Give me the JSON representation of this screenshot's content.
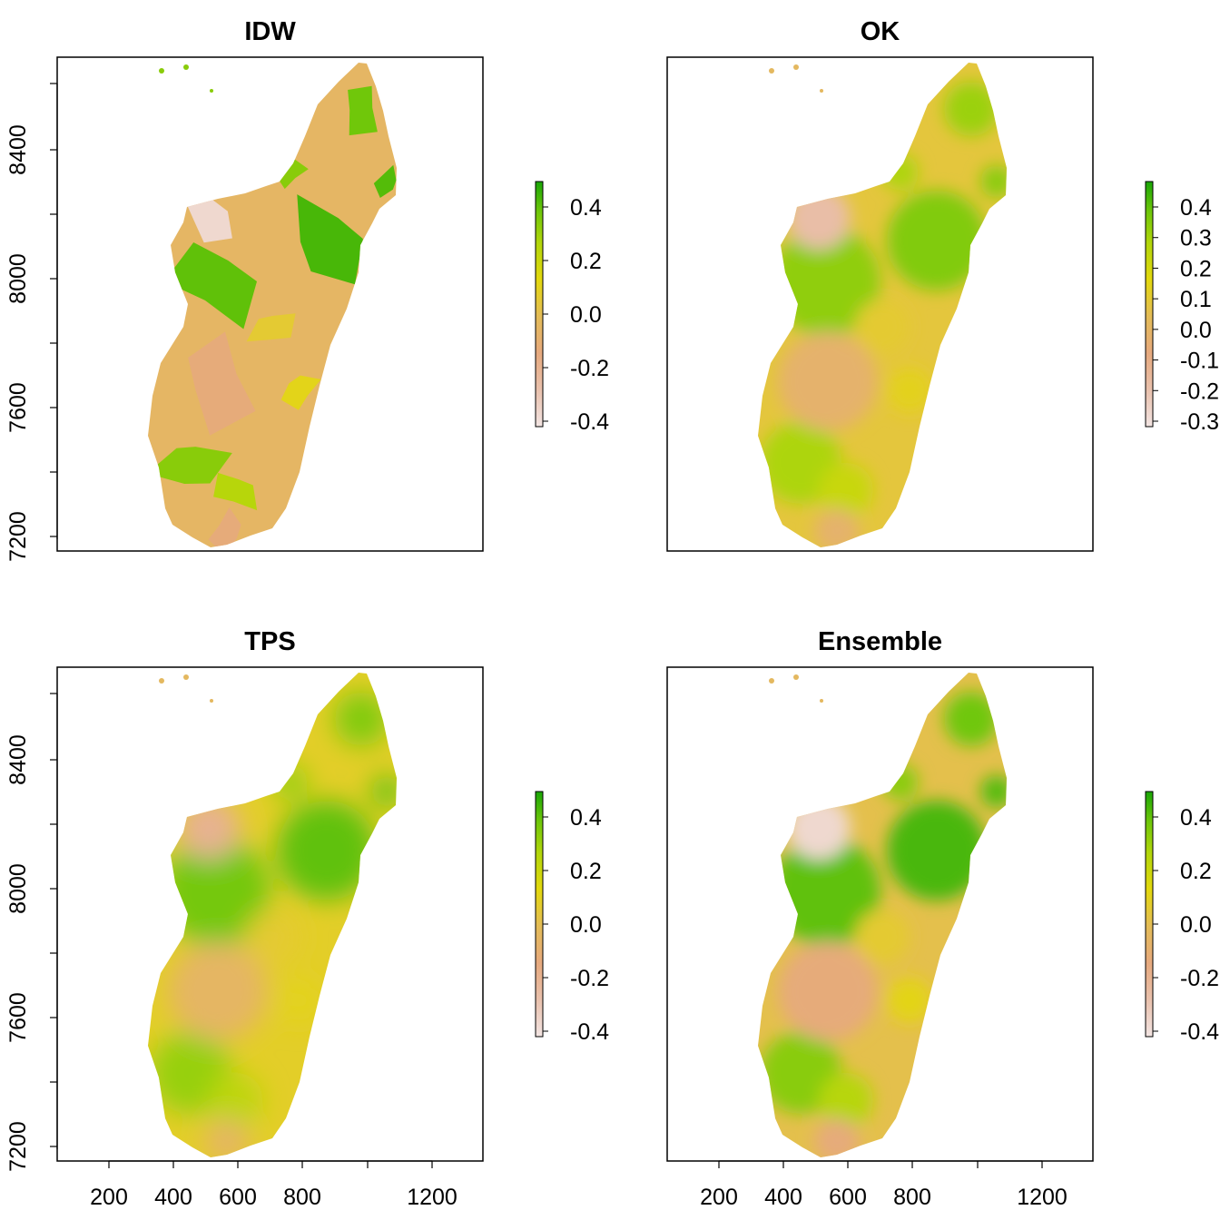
{
  "figure": {
    "panels": [
      {
        "title": "IDW",
        "legend": [
          "0.4",
          "0.2",
          "0.0",
          "-0.2",
          "-0.4"
        ],
        "ramp": [
          -0.5,
          0.5
        ],
        "style": "patchy"
      },
      {
        "title": "OK",
        "legend": [
          "0.4",
          "0.3",
          "0.2",
          "0.1",
          "0.0",
          "-0.1",
          "-0.2",
          "-0.3"
        ],
        "ramp": [
          -0.35,
          0.45
        ],
        "style": "smooth"
      },
      {
        "title": "TPS",
        "legend": [
          "0.4",
          "0.2",
          "0.0",
          "-0.2",
          "-0.4"
        ],
        "ramp": [
          -0.55,
          0.5
        ],
        "style": "smooth-strong"
      },
      {
        "title": "Ensemble",
        "legend": [
          "0.4",
          "0.2",
          "0.0",
          "-0.2",
          "-0.4"
        ],
        "ramp": [
          -0.45,
          0.45
        ],
        "style": "mixed"
      }
    ],
    "y_ticks": [
      "8400",
      "8000",
      "7600",
      "7200"
    ],
    "x_ticks": [
      "200",
      "400",
      "600",
      "800",
      "1200"
    ],
    "colors": {
      "ramp": [
        "#f2e4e2",
        "#e9c1ad",
        "#e6a97e",
        "#e4bc57",
        "#e3d80e",
        "#b2d60b",
        "#6dc60a",
        "#19a506"
      ],
      "axis": "#000000"
    }
  },
  "chart_data": [
    {
      "type": "heatmap",
      "title": "IDW",
      "x_ticks": [
        200,
        400,
        600,
        800,
        1200
      ],
      "y_ticks": [
        8400,
        8000,
        7600,
        7200
      ],
      "legend_range": [
        -0.4,
        0.4
      ],
      "legend_ticks": [
        0.4,
        0.2,
        0.0,
        -0.2,
        -0.4
      ]
    },
    {
      "type": "heatmap",
      "title": "OK",
      "x_ticks": [],
      "y_ticks": [],
      "legend_range": [
        -0.3,
        0.4
      ],
      "legend_ticks": [
        0.4,
        0.3,
        0.2,
        0.1,
        0.0,
        -0.1,
        -0.2,
        -0.3
      ]
    },
    {
      "type": "heatmap",
      "title": "TPS",
      "x_ticks": [
        200,
        400,
        600,
        800,
        1200
      ],
      "y_ticks": [
        8400,
        8000,
        7600,
        7200
      ],
      "legend_range": [
        -0.4,
        0.4
      ],
      "legend_ticks": [
        0.4,
        0.2,
        0.0,
        -0.2,
        -0.4
      ]
    },
    {
      "type": "heatmap",
      "title": "Ensemble",
      "x_ticks": [
        200,
        400,
        600,
        800,
        1200
      ],
      "y_ticks": [],
      "legend_range": [
        -0.4,
        0.4
      ],
      "legend_ticks": [
        0.4,
        0.2,
        0.0,
        -0.2,
        -0.4
      ]
    }
  ]
}
